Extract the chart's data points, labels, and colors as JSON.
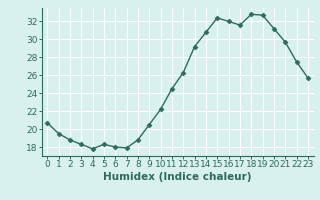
{
  "x": [
    0,
    1,
    2,
    3,
    4,
    5,
    6,
    7,
    8,
    9,
    10,
    11,
    12,
    13,
    14,
    15,
    16,
    17,
    18,
    19,
    20,
    21,
    22,
    23
  ],
  "y": [
    20.7,
    19.5,
    18.8,
    18.3,
    17.8,
    18.3,
    18.0,
    17.9,
    18.8,
    20.5,
    22.2,
    24.5,
    26.3,
    29.2,
    30.8,
    32.4,
    32.0,
    31.6,
    32.8,
    32.7,
    31.2,
    29.7,
    27.5,
    25.7
  ],
  "line_color": "#2e6b5e",
  "marker": "D",
  "marker_size": 2.5,
  "bg_color": "#d8f0ee",
  "grid_color": "#ffffff",
  "xlabel": "Humidex (Indice chaleur)",
  "xlim": [
    -0.5,
    23.5
  ],
  "ylim": [
    17.0,
    33.5
  ],
  "yticks": [
    18,
    20,
    22,
    24,
    26,
    28,
    30,
    32
  ],
  "xticks": [
    0,
    1,
    2,
    3,
    4,
    5,
    6,
    7,
    8,
    9,
    10,
    11,
    12,
    13,
    14,
    15,
    16,
    17,
    18,
    19,
    20,
    21,
    22,
    23
  ],
  "tick_fontsize": 6.5,
  "xlabel_fontsize": 7.5,
  "linewidth": 1.0
}
